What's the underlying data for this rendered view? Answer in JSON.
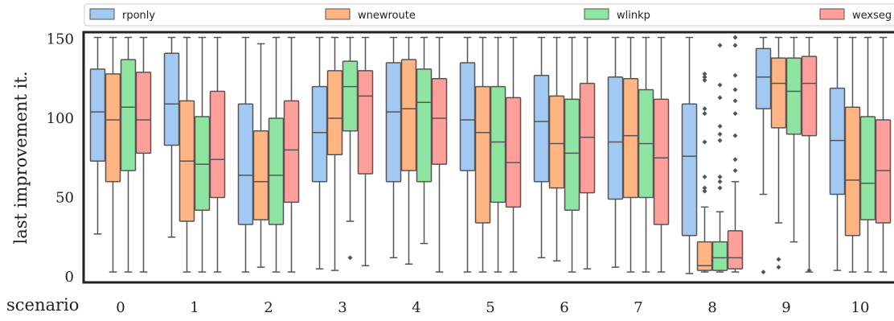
{
  "chart_data": {
    "type": "box",
    "xlabel": "scenario",
    "ylabel": "last improvement it.",
    "ylim": [
      0,
      155
    ],
    "yticks": [
      0,
      50,
      100,
      150
    ],
    "categories": [
      "0",
      "1",
      "2",
      "3",
      "4",
      "5",
      "6",
      "7",
      "8",
      "9",
      "10"
    ],
    "legend_position": "top",
    "grid": false,
    "series": [
      {
        "name": "rponly",
        "color": "#a1c9f4",
        "boxes": [
          {
            "whisker_low": 27,
            "q1": 73,
            "median": 104,
            "q3": 131,
            "whisker_high": 151,
            "outliers": []
          },
          {
            "whisker_low": 25,
            "q1": 83,
            "median": 109,
            "q3": 141,
            "whisker_high": 151,
            "outliers": []
          },
          {
            "whisker_low": 3,
            "q1": 33,
            "median": 64,
            "q3": 109,
            "whisker_high": 151,
            "outliers": []
          },
          {
            "whisker_low": 5,
            "q1": 60,
            "median": 91,
            "q3": 120,
            "whisker_high": 151,
            "outliers": []
          },
          {
            "whisker_low": 12,
            "q1": 60,
            "median": 104,
            "q3": 135,
            "whisker_high": 151,
            "outliers": []
          },
          {
            "whisker_low": 3,
            "q1": 67,
            "median": 99,
            "q3": 135,
            "whisker_high": 151,
            "outliers": []
          },
          {
            "whisker_low": 12,
            "q1": 60,
            "median": 98,
            "q3": 127,
            "whisker_high": 151,
            "outliers": []
          },
          {
            "whisker_low": 6,
            "q1": 49,
            "median": 85,
            "q3": 126,
            "whisker_high": 151,
            "outliers": []
          },
          {
            "whisker_low": 2,
            "q1": 26,
            "median": 76,
            "q3": 109,
            "whisker_high": 151,
            "outliers": []
          },
          {
            "whisker_low": 52,
            "q1": 106,
            "median": 126,
            "q3": 144,
            "whisker_high": 151,
            "outliers": [
              3
            ]
          },
          {
            "whisker_low": 4,
            "q1": 52,
            "median": 86,
            "q3": 119,
            "whisker_high": 151,
            "outliers": []
          }
        ]
      },
      {
        "name": "wnewroute",
        "color": "#ffb482",
        "boxes": [
          {
            "whisker_low": 3,
            "q1": 60,
            "median": 99,
            "q3": 128,
            "whisker_high": 151,
            "outliers": []
          },
          {
            "whisker_low": 3,
            "q1": 35,
            "median": 73,
            "q3": 111,
            "whisker_high": 151,
            "outliers": []
          },
          {
            "whisker_low": 6,
            "q1": 36,
            "median": 60,
            "q3": 92,
            "whisker_high": 147,
            "outliers": []
          },
          {
            "whisker_low": 4,
            "q1": 77,
            "median": 100,
            "q3": 130,
            "whisker_high": 151,
            "outliers": []
          },
          {
            "whisker_low": 8,
            "q1": 67,
            "median": 106,
            "q3": 137,
            "whisker_high": 151,
            "outliers": []
          },
          {
            "whisker_low": 3,
            "q1": 34,
            "median": 91,
            "q3": 120,
            "whisker_high": 151,
            "outliers": []
          },
          {
            "whisker_low": 10,
            "q1": 56,
            "median": 84,
            "q3": 114,
            "whisker_high": 151,
            "outliers": []
          },
          {
            "whisker_low": 3,
            "q1": 50,
            "median": 89,
            "q3": 125,
            "whisker_high": 151,
            "outliers": []
          },
          {
            "whisker_low": 3,
            "q1": 4,
            "median": 7,
            "q3": 22,
            "whisker_high": 44,
            "outliers": [
              54,
              56,
              63,
              85,
              103,
              106,
              124,
              126,
              128
            ]
          },
          {
            "whisker_low": 34,
            "q1": 94,
            "median": 122,
            "q3": 138,
            "whisker_high": 151,
            "outliers": [
              6,
              11
            ]
          },
          {
            "whisker_low": 3,
            "q1": 26,
            "median": 61,
            "q3": 107,
            "whisker_high": 151,
            "outliers": []
          }
        ]
      },
      {
        "name": "wlinkp",
        "color": "#8de5a1",
        "boxes": [
          {
            "whisker_low": 3,
            "q1": 67,
            "median": 107,
            "q3": 137,
            "whisker_high": 151,
            "outliers": []
          },
          {
            "whisker_low": 3,
            "q1": 42,
            "median": 71,
            "q3": 101,
            "whisker_high": 151,
            "outliers": []
          },
          {
            "whisker_low": 3,
            "q1": 33,
            "median": 64,
            "q3": 100,
            "whisker_high": 151,
            "outliers": []
          },
          {
            "whisker_low": 35,
            "q1": 92,
            "median": 120,
            "q3": 136,
            "whisker_high": 151,
            "outliers": [
              12
            ]
          },
          {
            "whisker_low": 21,
            "q1": 60,
            "median": 110,
            "q3": 131,
            "whisker_high": 151,
            "outliers": []
          },
          {
            "whisker_low": 3,
            "q1": 47,
            "median": 85,
            "q3": 120,
            "whisker_high": 151,
            "outliers": []
          },
          {
            "whisker_low": 3,
            "q1": 42,
            "median": 78,
            "q3": 112,
            "whisker_high": 151,
            "outliers": []
          },
          {
            "whisker_low": 3,
            "q1": 50,
            "median": 84,
            "q3": 118,
            "whisker_high": 151,
            "outliers": []
          },
          {
            "whisker_low": 3,
            "q1": 4,
            "median": 12,
            "q3": 22,
            "whisker_high": 41,
            "outliers": [
              56,
              60,
              63,
              86,
              90,
              95,
              113,
              121,
              146
            ]
          },
          {
            "whisker_low": 22,
            "q1": 90,
            "median": 117,
            "q3": 138,
            "whisker_high": 151,
            "outliers": []
          },
          {
            "whisker_low": 3,
            "q1": 36,
            "median": 59,
            "q3": 101,
            "whisker_high": 151,
            "outliers": []
          }
        ]
      },
      {
        "name": "wexseg",
        "color": "#ff9f9b",
        "boxes": [
          {
            "whisker_low": 3,
            "q1": 78,
            "median": 99,
            "q3": 129,
            "whisker_high": 151,
            "outliers": []
          },
          {
            "whisker_low": 3,
            "q1": 50,
            "median": 74,
            "q3": 117,
            "whisker_high": 151,
            "outliers": []
          },
          {
            "whisker_low": 3,
            "q1": 47,
            "median": 80,
            "q3": 111,
            "whisker_high": 151,
            "outliers": []
          },
          {
            "whisker_low": 7,
            "q1": 65,
            "median": 114,
            "q3": 130,
            "whisker_high": 151,
            "outliers": []
          },
          {
            "whisker_low": 3,
            "q1": 71,
            "median": 100,
            "q3": 125,
            "whisker_high": 151,
            "outliers": []
          },
          {
            "whisker_low": 3,
            "q1": 44,
            "median": 72,
            "q3": 113,
            "whisker_high": 151,
            "outliers": []
          },
          {
            "whisker_low": 5,
            "q1": 53,
            "median": 88,
            "q3": 122,
            "whisker_high": 151,
            "outliers": []
          },
          {
            "whisker_low": 3,
            "q1": 33,
            "median": 75,
            "q3": 112,
            "whisker_high": 151,
            "outliers": []
          },
          {
            "whisker_low": 3,
            "q1": 5,
            "median": 12,
            "q3": 29,
            "whisker_high": 60,
            "outliers": [
              67,
              74,
              89,
              103,
              111,
              118,
              127,
              146,
              151
            ]
          },
          {
            "whisker_low": 3,
            "q1": 89,
            "median": 122,
            "q3": 139,
            "whisker_high": 151,
            "outliers": [
              4
            ]
          },
          {
            "whisker_low": 3,
            "q1": 34,
            "median": 67,
            "q3": 99,
            "whisker_high": 151,
            "outliers": []
          }
        ]
      }
    ]
  }
}
